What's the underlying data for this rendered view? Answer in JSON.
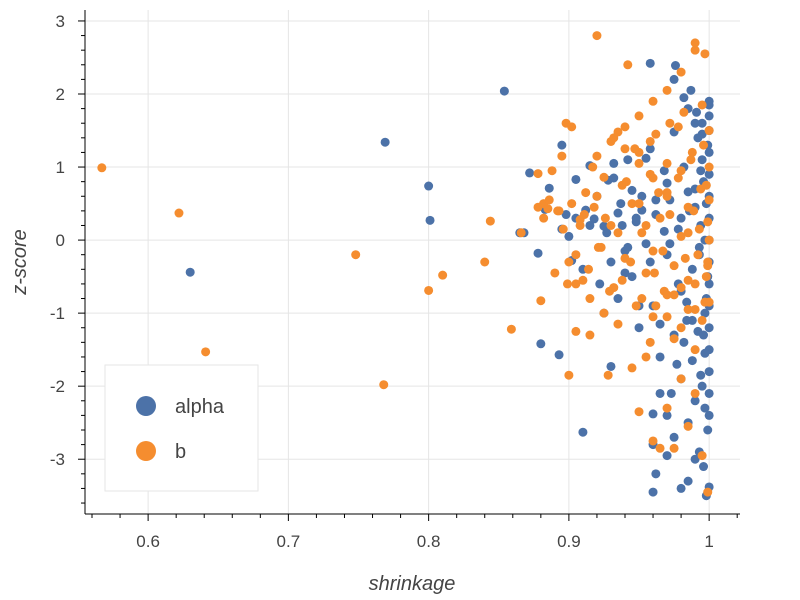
{
  "chart_data": {
    "type": "scatter",
    "title": "",
    "xlabel": "shrinkage",
    "ylabel": "z-score",
    "xlim": [
      0.555,
      1.022
    ],
    "ylim": [
      -3.75,
      3.15
    ],
    "xticks": [
      0.6,
      0.7,
      0.8,
      0.9,
      1
    ],
    "xtick_labels": [
      "0.6",
      "0.7",
      "0.8",
      "0.9",
      "1"
    ],
    "yticks": [
      3,
      2,
      1,
      0,
      -1,
      -2,
      -3
    ],
    "ytick_labels": [
      "3",
      "2",
      "1",
      "0",
      "-1",
      "-2",
      "-3"
    ],
    "grid": true,
    "legend_position": "bottom-left",
    "colors": {
      "alpha": "#4c72a8",
      "b": "#f58d2f",
      "grid": "#e5e5e5",
      "axis": "#000000"
    },
    "series": [
      {
        "name": "alpha",
        "color": "#4c72a8",
        "x": [
          0.63,
          0.769,
          0.8,
          0.801,
          0.854,
          0.865,
          0.868,
          0.872,
          0.878,
          0.88,
          0.883,
          0.886,
          0.893,
          0.895,
          0.898,
          0.902,
          0.905,
          0.91,
          0.912,
          0.915,
          0.918,
          0.922,
          0.925,
          0.928,
          0.93,
          0.932,
          0.935,
          0.938,
          0.94,
          0.942,
          0.945,
          0.948,
          0.95,
          0.952,
          0.955,
          0.958,
          0.96,
          0.962,
          0.965,
          0.968,
          0.97,
          0.972,
          0.975,
          0.976,
          0.978,
          0.98,
          0.982,
          0.984,
          0.985,
          0.987,
          0.988,
          0.99,
          0.991,
          0.993,
          0.994,
          0.995,
          0.996,
          0.997,
          0.998,
          0.999,
          1.0,
          1.0,
          1.0,
          1.0,
          1.0,
          1.0,
          1.0,
          1.0,
          1.0,
          1.0,
          1.0,
          1.0,
          1.0,
          1.0,
          1.0,
          1.0,
          0.999,
          0.998,
          0.997,
          0.996,
          0.995,
          0.994,
          0.993,
          0.992,
          0.99,
          0.988,
          0.986,
          0.984,
          0.982,
          0.98,
          0.978,
          0.975,
          0.972,
          0.97,
          0.968,
          0.965,
          0.962,
          0.96,
          0.958,
          0.955,
          0.952,
          0.95,
          0.948,
          0.945,
          0.942,
          0.94,
          0.937,
          0.935,
          0.932,
          0.93,
          0.927,
          0.925,
          0.92,
          0.915,
          0.91,
          0.905,
          0.9,
          0.895,
          0.99,
          0.985,
          0.98,
          0.975,
          0.97,
          0.965,
          0.96,
          0.995,
          0.997,
          0.999,
          0.98,
          0.985,
          0.99,
          0.993,
          0.996,
          0.998,
          1.0,
          0.96,
          0.962,
          0.97,
          0.973,
          0.977,
          0.982,
          0.988,
          0.992,
          0.994,
          0.997,
          0.958,
          0.975,
          0.985,
          0.99,
          0.995,
          1.0
        ],
        "y": [
          -0.44,
          1.34,
          0.74,
          0.27,
          2.04,
          0.1,
          0.1,
          0.92,
          -0.18,
          -1.42,
          0.42,
          0.71,
          -1.57,
          1.3,
          0.35,
          -0.28,
          0.83,
          -2.63,
          0.41,
          1.02,
          0.29,
          -0.6,
          0.19,
          0.82,
          -1.73,
          1.05,
          0.37,
          0.2,
          -0.45,
          -0.1,
          0.68,
          0.25,
          -0.9,
          0.41,
          1.12,
          -0.3,
          -2.38,
          0.55,
          -1.15,
          0.12,
          0.78,
          -0.05,
          1.48,
          2.39,
          -0.6,
          0.3,
          1.95,
          -0.85,
          0.66,
          2.05,
          -1.1,
          0.45,
          1.75,
          -0.2,
          0.95,
          1.6,
          -1.3,
          0.0,
          0.5,
          1.3,
          1.9,
          1.7,
          1.5,
          1.2,
          0.9,
          0.6,
          0.3,
          0.0,
          -0.3,
          -0.6,
          -0.9,
          -1.2,
          -1.5,
          -1.8,
          -2.1,
          -2.4,
          -0.5,
          -0.8,
          -1.0,
          0.8,
          1.1,
          0.2,
          -0.1,
          1.4,
          0.7,
          -0.4,
          0.4,
          -1.1,
          1.0,
          -0.7,
          0.15,
          -1.3,
          0.55,
          -0.2,
          0.95,
          -1.6,
          0.35,
          -0.9,
          1.25,
          -0.05,
          0.6,
          -1.2,
          0.3,
          -0.5,
          1.1,
          -0.15,
          0.5,
          -0.8,
          0.85,
          -0.3,
          0.1,
          -1.0,
          0.6,
          0.2,
          -0.4,
          0.3,
          0.05,
          0.15,
          -2.2,
          -2.5,
          -1.9,
          -2.7,
          -2.4,
          -2.1,
          -2.8,
          -2.0,
          -2.3,
          -2.6,
          -3.4,
          -3.3,
          -3.0,
          -2.9,
          -3.1,
          -3.5,
          -3.38,
          -3.45,
          -3.2,
          -2.95,
          -2.1,
          -1.7,
          -1.4,
          -1.65,
          -1.25,
          -1.85,
          -1.55,
          2.42,
          2.2,
          1.8,
          1.6,
          1.45,
          1.85
        ]
      },
      {
        "name": "b",
        "color": "#f58d2f",
        "x": [
          0.567,
          0.622,
          0.641,
          0.748,
          0.768,
          0.8,
          0.81,
          0.84,
          0.844,
          0.859,
          0.866,
          0.878,
          0.88,
          0.882,
          0.885,
          0.888,
          0.892,
          0.895,
          0.898,
          0.9,
          0.902,
          0.905,
          0.908,
          0.91,
          0.912,
          0.915,
          0.918,
          0.92,
          0.921,
          0.925,
          0.928,
          0.93,
          0.932,
          0.935,
          0.938,
          0.94,
          0.942,
          0.945,
          0.948,
          0.95,
          0.952,
          0.955,
          0.958,
          0.96,
          0.962,
          0.965,
          0.968,
          0.97,
          0.972,
          0.975,
          0.978,
          0.98,
          0.982,
          0.985,
          0.987,
          0.989,
          0.99,
          0.992,
          0.994,
          0.996,
          0.998,
          0.999,
          1.0,
          1.0,
          1.0,
          1.0,
          1.0,
          0.999,
          0.998,
          0.997,
          0.995,
          0.993,
          0.99,
          0.988,
          0.985,
          0.983,
          0.98,
          0.978,
          0.975,
          0.972,
          0.97,
          0.967,
          0.964,
          0.961,
          0.958,
          0.955,
          0.952,
          0.95,
          0.947,
          0.944,
          0.941,
          0.938,
          0.935,
          0.932,
          0.929,
          0.926,
          0.923,
          0.92,
          0.917,
          0.914,
          0.911,
          0.908,
          0.905,
          0.902,
          0.899,
          0.896,
          0.893,
          0.89,
          0.886,
          0.882,
          0.878,
          0.9,
          0.95,
          0.96,
          0.97,
          0.98,
          0.99,
          0.995,
          0.999,
          0.985,
          0.975,
          0.965,
          0.955,
          0.945,
          0.935,
          0.925,
          0.915,
          0.905,
          0.99,
          0.98,
          0.97,
          0.96,
          0.95,
          0.94,
          0.93,
          0.92,
          0.97,
          0.975,
          0.98,
          0.985,
          0.99,
          0.995,
          0.96,
          0.958,
          0.962,
          0.97,
          0.98,
          0.99,
          0.997,
          0.999,
          0.985,
          0.97,
          0.96,
          0.95,
          0.94
        ],
        "y": [
          0.99,
          0.37,
          -1.53,
          -0.2,
          -1.98,
          -0.69,
          -0.48,
          -0.3,
          0.26,
          -1.22,
          0.1,
          0.91,
          -0.83,
          0.5,
          0.43,
          0.95,
          0.4,
          1.15,
          1.6,
          -0.3,
          1.55,
          -0.6,
          0.28,
          -0.55,
          0.65,
          -0.8,
          0.45,
          2.8,
          -0.1,
          0.86,
          -1.85,
          0.2,
          -0.65,
          1.48,
          0.75,
          -0.25,
          2.4,
          0.5,
          -0.9,
          1.2,
          0.1,
          -0.45,
          0.9,
          -0.15,
          1.45,
          0.3,
          -0.7,
          0.6,
          1.6,
          -0.35,
          0.85,
          0.05,
          1.75,
          -0.55,
          1.1,
          0.4,
          2.6,
          -0.2,
          0.7,
          1.3,
          -0.5,
          0.25,
          1.5,
          0.0,
          -0.85,
          0.55,
          1.0,
          -0.35,
          0.75,
          2.55,
          1.85,
          0.15,
          -0.6,
          1.2,
          0.45,
          -0.25,
          0.95,
          1.55,
          -0.75,
          0.35,
          1.05,
          -0.15,
          0.65,
          -0.45,
          1.35,
          0.2,
          -0.8,
          0.5,
          1.25,
          -0.3,
          0.8,
          -0.55,
          0.1,
          1.4,
          -0.7,
          0.3,
          -0.1,
          0.6,
          1.0,
          -0.4,
          0.35,
          0.2,
          -0.2,
          0.5,
          -0.6,
          0.15,
          0.4,
          -0.45,
          0.55,
          0.3,
          0.45,
          -1.85,
          -2.35,
          -2.75,
          -2.3,
          -1.9,
          -2.1,
          -2.95,
          -3.45,
          -2.55,
          -2.85,
          -2.85,
          -1.6,
          -1.75,
          -1.15,
          -1.0,
          -1.3,
          -1.25,
          2.7,
          2.3,
          2.05,
          1.9,
          1.7,
          1.55,
          1.35,
          1.15,
          -1.05,
          -1.35,
          -1.2,
          -0.95,
          -1.5,
          -1.1,
          -1.05,
          -1.4,
          -0.9,
          -0.75,
          -0.65,
          -0.95,
          -0.85,
          -0.3,
          0.1,
          0.65,
          0.85,
          1.05,
          1.25
        ]
      }
    ]
  }
}
